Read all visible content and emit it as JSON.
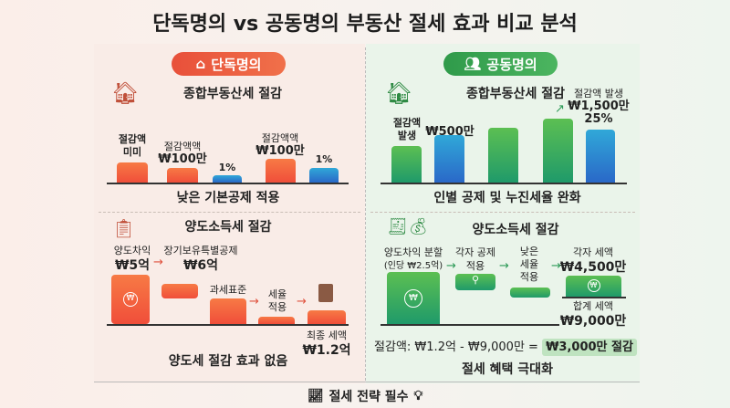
{
  "title": "단독명의 vs 공동명의 부동산 절세 효과 비교 분석",
  "left": {
    "badge": "단독명의",
    "badge_icon": "house-outline-icon",
    "property_tax": {
      "title": "종합부동산세 절감",
      "icon": "house-icon",
      "bar_labels": [
        [
          "절감액",
          "미미"
        ],
        [
          "절감액액",
          "₩100만"
        ],
        [
          "",
          "1%"
        ],
        [
          "절감액액",
          "₩100만"
        ],
        [
          "",
          "1%"
        ]
      ],
      "caption": "낮은 기본공제 적용"
    },
    "capital_gains": {
      "title": "양도소득세 절감",
      "icon": "clipboard-won-icon",
      "step1": [
        "양도차익",
        "₩5억"
      ],
      "step2": [
        "장기보유특별공제",
        "₩6억"
      ],
      "step3": "과세표준",
      "step4": [
        "세율",
        "적용"
      ],
      "final": [
        "최종 세액",
        "₩1.2억"
      ],
      "caption": "양도세 절감 효과 없음"
    }
  },
  "right": {
    "badge": "공동명의",
    "badge_icon": "people-icon",
    "property_tax": {
      "title": "종합부동산세 절감",
      "icon": "house-calculator-icon",
      "bar_labels": [
        [
          "절감액",
          "발생"
        ],
        [
          "",
          "₩500만"
        ],
        [
          "",
          ""
        ],
        [
          "",
          ""
        ],
        [
          "절감액 발생",
          "₩1,500만",
          "25%"
        ]
      ],
      "caption": "인별 공제 및 누진세율 완화"
    },
    "capital_gains": {
      "title": "양도소득세 절감",
      "icon": "tax-document-money-bag-icon",
      "step1": [
        "양도차익 분할",
        "(인당 ₩2.5억)"
      ],
      "step2": [
        "각자 공제",
        "적용"
      ],
      "step3": [
        "낮은",
        "세율",
        "적용"
      ],
      "each": [
        "각자 세액",
        "₩4,500만"
      ],
      "total": [
        "합계 세액",
        "₩9,000만"
      ],
      "savings_prefix": "절감액: ₩1.2억 - ₩9,000만 =",
      "savings_highlight": "₩3,000만 절감",
      "caption": "절세 혜택 극대화"
    }
  },
  "footer": {
    "text": "절세 전략 필수",
    "icons": [
      "chart-growth-icon",
      "lightbulb-icon"
    ]
  },
  "colors": {
    "left": "#ec5a3d",
    "right": "#2f9a4a",
    "blue": "#2a7fd0"
  }
}
